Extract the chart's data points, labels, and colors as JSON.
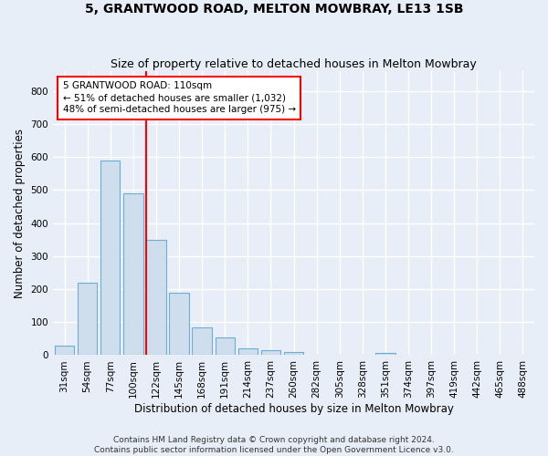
{
  "title": "5, GRANTWOOD ROAD, MELTON MOWBRAY, LE13 1SB",
  "subtitle": "Size of property relative to detached houses in Melton Mowbray",
  "xlabel": "Distribution of detached houses by size in Melton Mowbray",
  "ylabel": "Number of detached properties",
  "categories": [
    "31sqm",
    "54sqm",
    "77sqm",
    "100sqm",
    "122sqm",
    "145sqm",
    "168sqm",
    "191sqm",
    "214sqm",
    "237sqm",
    "260sqm",
    "282sqm",
    "305sqm",
    "328sqm",
    "351sqm",
    "374sqm",
    "397sqm",
    "419sqm",
    "442sqm",
    "465sqm",
    "488sqm"
  ],
  "values": [
    30,
    220,
    590,
    490,
    350,
    190,
    85,
    55,
    20,
    15,
    10,
    0,
    0,
    0,
    8,
    0,
    0,
    0,
    0,
    0,
    0
  ],
  "bar_color": "#cfdeed",
  "bar_edge_color": "#6aaed6",
  "background_color": "#e8eef7",
  "grid_color": "#ffffff",
  "red_line_x": 3.575,
  "annotation_line1": "5 GRANTWOOD ROAD: 110sqm",
  "annotation_line2": "← 51% of detached houses are smaller (1,032)",
  "annotation_line3": "48% of semi-detached houses are larger (975) →",
  "ylim": [
    0,
    860
  ],
  "yticks": [
    0,
    100,
    200,
    300,
    400,
    500,
    600,
    700,
    800
  ],
  "title_fontsize": 10,
  "subtitle_fontsize": 9,
  "axis_label_fontsize": 8.5,
  "tick_fontsize": 7.5,
  "annotation_fontsize": 7.5,
  "footer_fontsize": 6.5
}
